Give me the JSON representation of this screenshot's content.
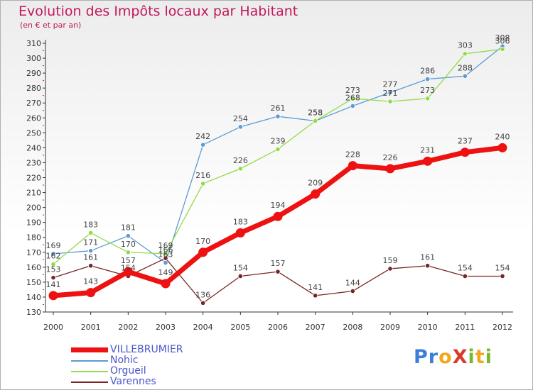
{
  "title": "Evolution des Impôts locaux par Habitant",
  "subtitle": "(en € et par an)",
  "logo": {
    "text": "ProXiti",
    "letters": [
      "P",
      "r",
      "o",
      "X",
      "i",
      "t",
      "i"
    ],
    "colors": [
      "#3d7ed8",
      "#3d7ed8",
      "#f2a81d",
      "#d93a2b",
      "#7ab831",
      "#f2a81d",
      "#7ab831"
    ]
  },
  "chart_data": {
    "type": "line",
    "x": [
      "2000",
      "2001",
      "2002",
      "2003",
      "2004",
      "2005",
      "2006",
      "2007",
      "2008",
      "2009",
      "2010",
      "2011",
      "2012"
    ],
    "ylim": [
      130,
      310
    ],
    "yticks": [
      130,
      140,
      150,
      160,
      170,
      180,
      190,
      200,
      210,
      220,
      230,
      240,
      250,
      260,
      270,
      280,
      290,
      300,
      310
    ],
    "grid": false,
    "legend_position": "bottom-left",
    "series": [
      {
        "name": "VILLEBRUMIER",
        "color": "#ee1111",
        "values": [
          141,
          143,
          157,
          149,
          170,
          183,
          194,
          209,
          228,
          226,
          231,
          237,
          240
        ]
      },
      {
        "name": "Nohic",
        "color": "#5b9bd5",
        "values": [
          169,
          171,
          181,
          163,
          242,
          254,
          261,
          258,
          268,
          277,
          286,
          288,
          308
        ]
      },
      {
        "name": "Orgueil",
        "color": "#8fdc47",
        "values": [
          162,
          183,
          170,
          169,
          216,
          226,
          239,
          258,
          273,
          271,
          273,
          303,
          306
        ]
      },
      {
        "name": "Varennes",
        "color": "#7a2525",
        "values": [
          153,
          161,
          154,
          166,
          136,
          154,
          157,
          141,
          144,
          159,
          161,
          154,
          154
        ]
      }
    ]
  }
}
